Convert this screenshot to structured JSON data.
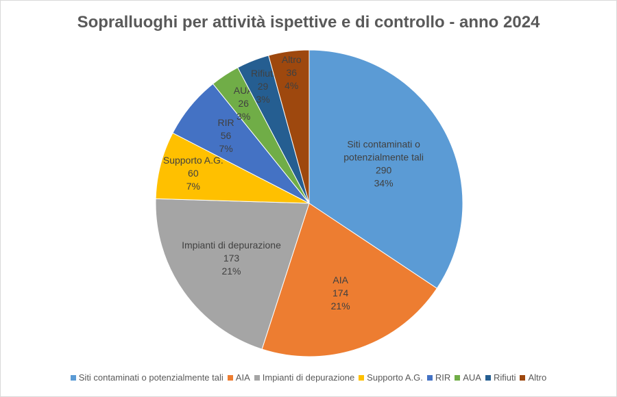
{
  "chart_data": {
    "type": "pie",
    "title": "Sopralluoghi per attività ispettive e di controllo - anno 2024",
    "legend_position": "bottom",
    "start_angle": "top, clockwise",
    "slices": [
      {
        "label": "Siti contaminati o potenzialmente tali",
        "value": 290,
        "percent": "34%",
        "color": "#5B9BD5"
      },
      {
        "label": "AIA",
        "value": 174,
        "percent": "21%",
        "color": "#ED7D31"
      },
      {
        "label": "Impianti di depurazione",
        "value": 173,
        "percent": "21%",
        "color": "#A5A5A5"
      },
      {
        "label": "Supporto A.G.",
        "value": 60,
        "percent": "7%",
        "color": "#FFC000"
      },
      {
        "label": "RIR",
        "value": 56,
        "percent": "7%",
        "color": "#4472C4"
      },
      {
        "label": "AUA",
        "value": 26,
        "percent": "3%",
        "color": "#70AD47"
      },
      {
        "label": "Rifiuti",
        "value": 29,
        "percent": "3%",
        "color": "#255E91"
      },
      {
        "label": "Altro",
        "value": 36,
        "percent": "4%",
        "color": "#9E480E"
      }
    ]
  }
}
